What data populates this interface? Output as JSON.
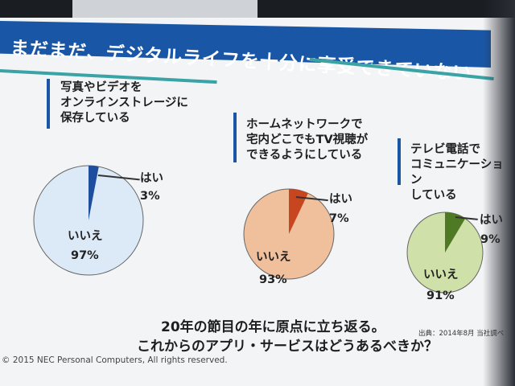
{
  "title": "まだまだ、デジタルライフを十分に享受できていない",
  "chart_data": [
    {
      "type": "pie",
      "question": "写真やビデオを\nオンラインストレージに\n保存している",
      "categories": [
        "はい",
        "いいえ"
      ],
      "values": [
        3,
        97
      ],
      "labels": [
        "3%",
        "97%"
      ],
      "colors": [
        "#1f4e9e",
        "#dce9f6"
      ]
    },
    {
      "type": "pie",
      "question": "ホームネットワークで\n宅内どこでもTV視聴が\nできるようにしている",
      "categories": [
        "はい",
        "いいえ"
      ],
      "values": [
        7,
        93
      ],
      "labels": [
        "7%",
        "93%"
      ],
      "colors": [
        "#c7461f",
        "#f0c09d"
      ]
    },
    {
      "type": "pie",
      "question": "テレビ電話で\nコミュニケーション\nしている",
      "categories": [
        "はい",
        "いいえ"
      ],
      "values": [
        9,
        91
      ],
      "labels": [
        "9%",
        "91%"
      ],
      "colors": [
        "#4f7a25",
        "#cfe0a8"
      ]
    }
  ],
  "footer": {
    "line1": "20年の節目の年に原点に立ち返る。",
    "line2": "これからのアプリ・サービスはどうあるべきか？"
  },
  "source": "出典：2014年8月 当社調べ",
  "copyright": "© 2015 NEC Personal Computers, All rights reserved."
}
